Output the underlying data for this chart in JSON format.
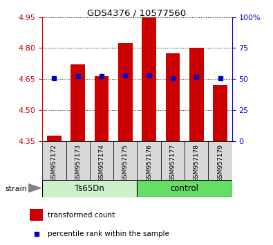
{
  "title": "GDS4376 / 10577560",
  "samples": [
    "GSM957172",
    "GSM957173",
    "GSM957174",
    "GSM957175",
    "GSM957176",
    "GSM957177",
    "GSM957178",
    "GSM957179"
  ],
  "red_values": [
    4.375,
    4.72,
    4.665,
    4.825,
    4.95,
    4.775,
    4.8,
    4.62
  ],
  "blue_values": [
    4.655,
    4.665,
    4.663,
    4.668,
    4.667,
    4.655,
    4.66,
    4.655
  ],
  "ymin": 4.35,
  "ymax": 4.95,
  "yticks": [
    4.35,
    4.5,
    4.65,
    4.8,
    4.95
  ],
  "y2min": 0,
  "y2max": 100,
  "y2ticks": [
    0,
    25,
    50,
    75,
    100
  ],
  "y2ticklabels": [
    "0",
    "25",
    "50",
    "75",
    "100%"
  ],
  "groups": [
    {
      "label": "Ts65Dn",
      "start": 0,
      "end": 4,
      "color": "#ccf0cc"
    },
    {
      "label": "control",
      "start": 4,
      "end": 8,
      "color": "#66dd66"
    }
  ],
  "bar_color": "#cc0000",
  "blue_color": "#0000cc",
  "bar_width": 0.6,
  "blue_marker_size": 5,
  "plot_bg": "#ffffff",
  "left_label_color": "#cc0000",
  "right_label_color": "#0000cc",
  "legend_red": "transformed count",
  "legend_blue": "percentile rank within the sample",
  "xtick_bg": "#d8d8d8"
}
